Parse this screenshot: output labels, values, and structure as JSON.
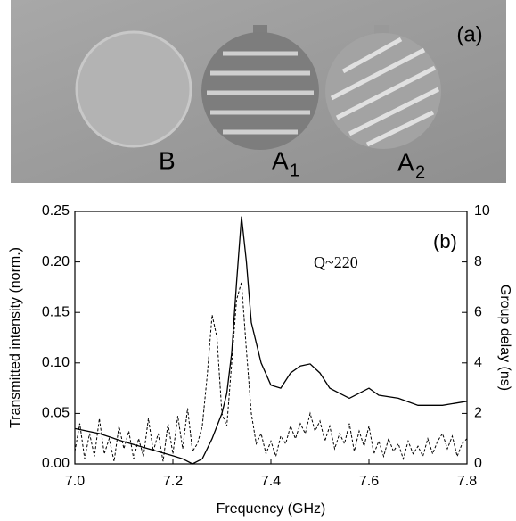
{
  "photo": {
    "panel_label": "(a)",
    "labels": [
      {
        "text": "B"
      },
      {
        "text": "A",
        "subscript": "1"
      },
      {
        "text": "A",
        "subscript": "2"
      }
    ]
  },
  "chart_data": {
    "type": "line",
    "annotations": [
      "Q~220",
      "(b)"
    ],
    "x_label": "Frequency (GHz)",
    "y_label": "Transmitted intensity (norm.)",
    "y2_label": "Group delay (ns)",
    "xlim": [
      7.0,
      7.8
    ],
    "xticks": [
      {
        "value": 7.0,
        "label": "7.0"
      },
      {
        "value": 7.2,
        "label": "7.2"
      },
      {
        "value": 7.4,
        "label": "7.4"
      },
      {
        "value": 7.6,
        "label": "7.6"
      },
      {
        "value": 7.8,
        "label": "7.8"
      }
    ],
    "ylim": [
      0,
      0.25
    ],
    "yticks": [
      {
        "value": 0,
        "label": "0.00"
      },
      {
        "value": 0.05,
        "label": "0.05"
      },
      {
        "value": 0.1,
        "label": "0.10"
      },
      {
        "value": 0.15,
        "label": "0.15"
      },
      {
        "value": 0.2,
        "label": "0.20"
      },
      {
        "value": 0.25,
        "label": "0.25"
      }
    ],
    "y2lim": [
      0,
      10
    ],
    "y2ticks": [
      0,
      2,
      4,
      6,
      8,
      10
    ],
    "series": [
      {
        "color": "#000000",
        "line_style": "solid",
        "x": [
          7.0,
          7.05,
          7.1,
          7.15,
          7.2,
          7.22,
          7.24,
          7.26,
          7.28,
          7.3,
          7.31,
          7.32,
          7.33,
          7.34,
          7.35,
          7.36,
          7.38,
          7.4,
          7.42,
          7.44,
          7.46,
          7.48,
          7.5,
          7.52,
          7.54,
          7.56,
          7.58,
          7.6,
          7.62,
          7.66,
          7.7,
          7.75,
          7.8
        ],
        "values": [
          0.035,
          0.03,
          0.022,
          0.015,
          0.008,
          0.005,
          0.0,
          0.005,
          0.025,
          0.05,
          0.07,
          0.11,
          0.18,
          0.245,
          0.2,
          0.14,
          0.1,
          0.078,
          0.075,
          0.09,
          0.097,
          0.099,
          0.09,
          0.075,
          0.07,
          0.065,
          0.07,
          0.075,
          0.068,
          0.065,
          0.058,
          0.058,
          0.062
        ]
      },
      {
        "color": "#000000",
        "line_style": "dashed",
        "axis": "y2",
        "x": [
          7.0,
          7.01,
          7.02,
          7.03,
          7.04,
          7.05,
          7.06,
          7.07,
          7.08,
          7.09,
          7.1,
          7.11,
          7.12,
          7.13,
          7.14,
          7.15,
          7.16,
          7.17,
          7.18,
          7.19,
          7.2,
          7.21,
          7.22,
          7.23,
          7.24,
          7.25,
          7.26,
          7.27,
          7.28,
          7.29,
          7.3,
          7.31,
          7.32,
          7.33,
          7.34,
          7.35,
          7.36,
          7.37,
          7.38,
          7.39,
          7.4,
          7.41,
          7.42,
          7.43,
          7.44,
          7.45,
          7.46,
          7.47,
          7.48,
          7.49,
          7.5,
          7.51,
          7.52,
          7.53,
          7.54,
          7.55,
          7.56,
          7.57,
          7.58,
          7.59,
          7.6,
          7.61,
          7.62,
          7.63,
          7.64,
          7.65,
          7.66,
          7.67,
          7.68,
          7.69,
          7.7,
          7.71,
          7.72,
          7.73,
          7.74,
          7.75,
          7.76,
          7.77,
          7.78,
          7.79,
          7.8
        ],
        "values": [
          0.5,
          1.6,
          0.2,
          1.2,
          0.3,
          1.8,
          0.4,
          1.0,
          0.1,
          1.5,
          0.6,
          1.3,
          0.2,
          1.0,
          0.3,
          1.8,
          0.5,
          1.2,
          0.1,
          1.6,
          0.4,
          1.9,
          0.6,
          2.2,
          0.5,
          0.8,
          1.5,
          3.5,
          5.9,
          5.0,
          2.0,
          1.5,
          4.0,
          6.5,
          7.2,
          4.5,
          2.0,
          0.8,
          1.2,
          0.4,
          0.9,
          0.3,
          1.1,
          0.8,
          1.5,
          1.0,
          1.6,
          1.2,
          2.0,
          1.3,
          1.7,
          0.9,
          1.5,
          0.6,
          1.2,
          0.8,
          1.6,
          0.5,
          1.3,
          0.7,
          1.5,
          0.4,
          0.9,
          0.3,
          1.0,
          0.5,
          0.8,
          0.2,
          0.9,
          0.4,
          0.7,
          0.3,
          1.0,
          0.4,
          0.9,
          1.2,
          0.6,
          1.1,
          0.3,
          0.8,
          1.0
        ]
      }
    ]
  }
}
